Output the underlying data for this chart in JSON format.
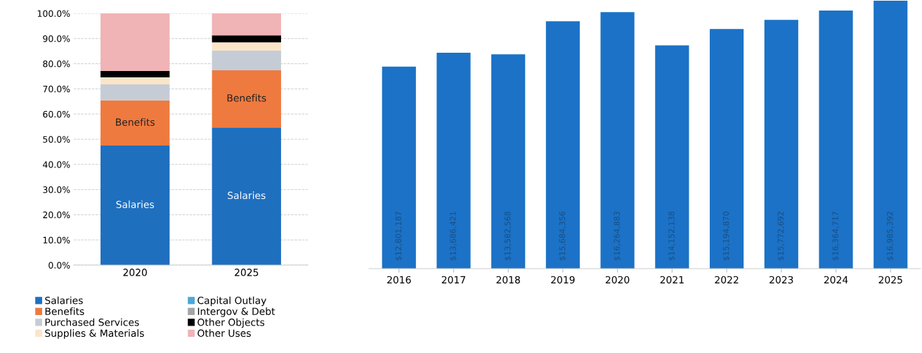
{
  "chart_data": [
    {
      "type": "bar",
      "stacked": true,
      "categories": [
        "2020",
        "2025"
      ],
      "ylim": [
        0,
        100
      ],
      "yticks": [
        {
          "value": 0,
          "label": "0.0%"
        },
        {
          "value": 10,
          "label": "10.0%"
        },
        {
          "value": 20,
          "label": "20.0%"
        },
        {
          "value": 30,
          "label": "30.0%"
        },
        {
          "value": 40,
          "label": "40.0%"
        },
        {
          "value": 50,
          "label": "50.0%"
        },
        {
          "value": 60,
          "label": "60.0%"
        },
        {
          "value": 70,
          "label": "70.0%"
        },
        {
          "value": 80,
          "label": "80.0%"
        },
        {
          "value": 90,
          "label": "90.0%"
        },
        {
          "value": 100,
          "label": "100.0%"
        }
      ],
      "grid": "y",
      "legend": "bottom",
      "series": [
        {
          "name": "Salaries",
          "color": "#1f6fbf",
          "values": [
            47.5,
            54.7
          ],
          "value_labels": [
            "Salaries",
            "Salaries"
          ]
        },
        {
          "name": "Benefits",
          "color": "#ef7a3f",
          "values": [
            17.9,
            22.7
          ],
          "value_labels": [
            "Benefits",
            "Benefits"
          ]
        },
        {
          "name": "Purchased Services",
          "color": "#c5ccd6",
          "values": [
            6.4,
            7.8
          ]
        },
        {
          "name": "Supplies & Materials",
          "color": "#fbe5c8",
          "values": [
            2.8,
            3.3
          ]
        },
        {
          "name": "Capital Outlay",
          "color": "#4aa8d8",
          "values": [
            0,
            0
          ]
        },
        {
          "name": "Intergov & Debt",
          "color": "#a5a5a5",
          "values": [
            0,
            0
          ]
        },
        {
          "name": "Other Objects",
          "color": "#000000",
          "values": [
            2.5,
            2.8
          ]
        },
        {
          "name": "Other Uses",
          "color": "#f0b3b6",
          "values": [
            22.9,
            8.7
          ]
        }
      ]
    },
    {
      "type": "bar",
      "categories": [
        "2016",
        "2017",
        "2018",
        "2019",
        "2020",
        "2021",
        "2022",
        "2023",
        "2024",
        "2025"
      ],
      "series": [
        {
          "color": "#1b72c6",
          "values": [
            12801187,
            13686421,
            13582568,
            15684356,
            16264883,
            14152138,
            15194870,
            15772692,
            16364717,
            16985392
          ],
          "value_labels": [
            "$12,801,187",
            "$13,686,421",
            "$13,582,568",
            "$15,684,356",
            "$16,264,883",
            "$14,152,138",
            "$15,194,870",
            "$15,772,692",
            "$16,364,717",
            "$16,985,392"
          ]
        }
      ]
    }
  ]
}
